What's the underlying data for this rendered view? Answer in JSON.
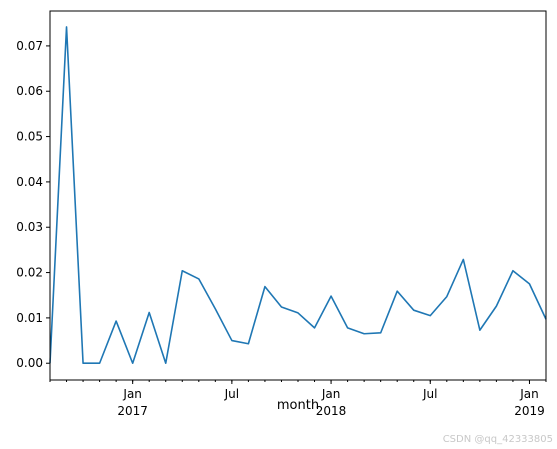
{
  "chart_data": {
    "type": "line",
    "xlabel": "month",
    "ylabel": "",
    "ylim": [
      -0.0037,
      0.0777
    ],
    "xlim": [
      "2016-08",
      "2019-02"
    ],
    "grid": false,
    "legend": "none",
    "yticks": [
      0.0,
      0.01,
      0.02,
      0.03,
      0.04,
      0.05,
      0.06,
      0.07
    ],
    "ytick_labels": [
      "0.00",
      "0.01",
      "0.02",
      "0.03",
      "0.04",
      "0.05",
      "0.06",
      "0.07"
    ],
    "xticks_major": [
      {
        "x": "2017-01",
        "label": "Jan",
        "sublabel": "2017"
      },
      {
        "x": "2017-07",
        "label": "Jul",
        "sublabel": ""
      },
      {
        "x": "2018-01",
        "label": "Jan",
        "sublabel": "2018"
      },
      {
        "x": "2018-07",
        "label": "Jul",
        "sublabel": ""
      },
      {
        "x": "2019-01",
        "label": "Jan",
        "sublabel": "2019"
      }
    ],
    "series": [
      {
        "color": "#1f77b4",
        "x": [
          "2016-08",
          "2016-09",
          "2016-10",
          "2016-11",
          "2016-12",
          "2017-01",
          "2017-02",
          "2017-03",
          "2017-04",
          "2017-05",
          "2017-06",
          "2017-07",
          "2017-08",
          "2017-09",
          "2017-10",
          "2017-11",
          "2017-12",
          "2018-01",
          "2018-02",
          "2018-03",
          "2018-04",
          "2018-05",
          "2018-06",
          "2018-07",
          "2018-08",
          "2018-09",
          "2018-10",
          "2018-11",
          "2018-12",
          "2019-01",
          "2019-02"
        ],
        "values": [
          0.0,
          0.0742,
          0.0,
          0.0,
          0.0093,
          0.0,
          0.0112,
          0.0,
          0.0204,
          0.0186,
          0.012,
          0.005,
          0.0043,
          0.0169,
          0.0124,
          0.0111,
          0.0078,
          0.0148,
          0.0078,
          0.0065,
          0.0067,
          0.0159,
          0.0117,
          0.0105,
          0.0147,
          0.0229,
          0.0073,
          0.0126,
          0.0204,
          0.0175,
          0.0097
        ]
      }
    ]
  },
  "watermark": "CSDN @qq_42333805"
}
